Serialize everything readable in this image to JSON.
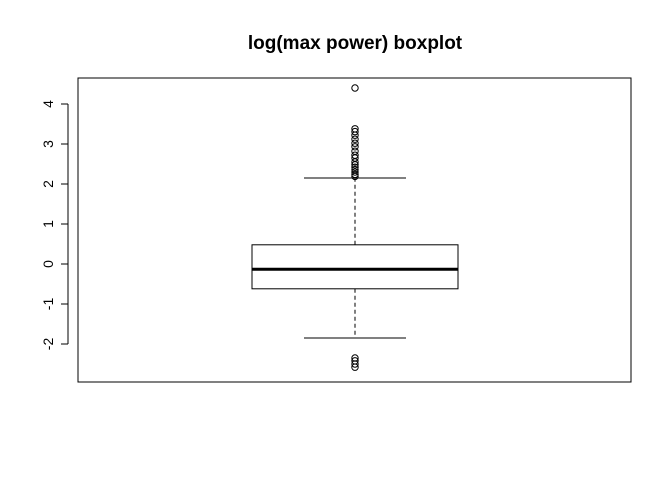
{
  "chart_data": {
    "type": "box",
    "title": "log(max power) boxplot",
    "xlabel": "",
    "ylabel": "",
    "ylim": [
      -2.95,
      4.65
    ],
    "yticks": [
      -2,
      -1,
      0,
      1,
      2,
      3,
      4
    ],
    "ytick_labels": [
      "-2",
      "-1",
      "0",
      "1",
      "2",
      "3",
      "4"
    ],
    "grid": false,
    "box": {
      "whisker_low": -1.85,
      "q1": -0.62,
      "median": -0.13,
      "q3": 0.48,
      "whisker_high": 2.15,
      "outliers": [
        4.4,
        3.38,
        3.31,
        3.22,
        3.12,
        3.02,
        2.93,
        2.82,
        2.72,
        2.65,
        2.55,
        2.48,
        2.42,
        2.36,
        2.3,
        2.24,
        2.19,
        -2.35,
        -2.42,
        -2.5,
        -2.58
      ]
    },
    "colors": {
      "box": "#000000",
      "median": "#000000",
      "outlier": "#000000"
    }
  }
}
